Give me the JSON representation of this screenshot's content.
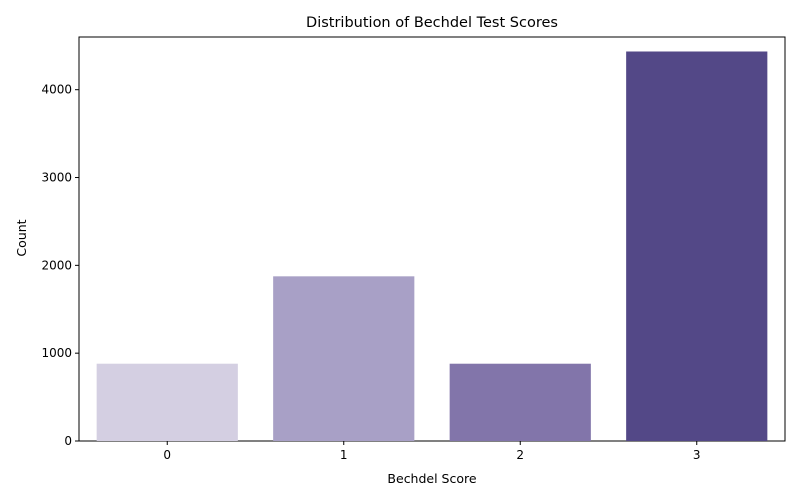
{
  "chart_data": {
    "type": "bar",
    "title": "Distribution of Bechdel Test Scores",
    "xlabel": "Bechdel Score",
    "ylabel": "Count",
    "categories": [
      "0",
      "1",
      "2",
      "3"
    ],
    "values": [
      880,
      1875,
      880,
      4435
    ],
    "colors": [
      "#d4cfe2",
      "#a8a0c6",
      "#8275aa",
      "#534887"
    ],
    "ylim": [
      0,
      4600
    ],
    "yticks": [
      0,
      1000,
      2000,
      3000,
      4000
    ],
    "grid": false,
    "legend": "none"
  }
}
